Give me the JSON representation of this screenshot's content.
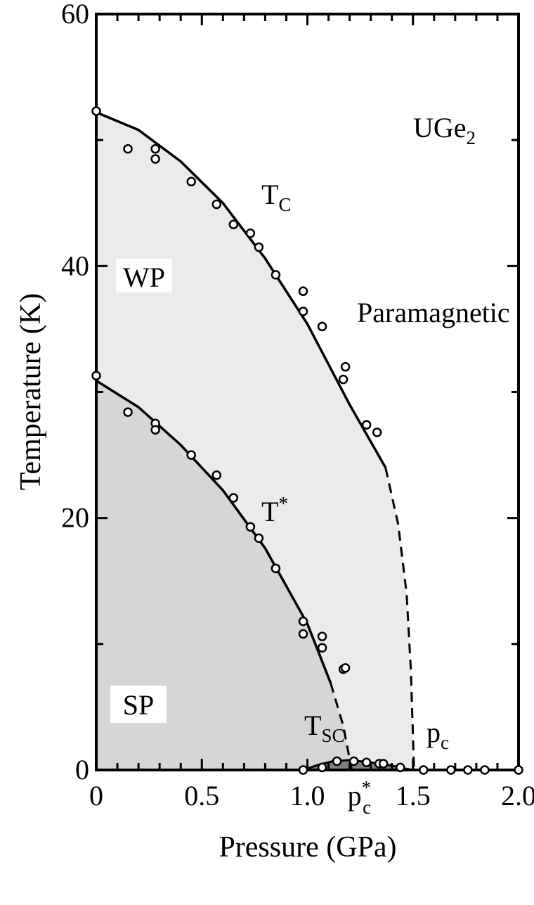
{
  "chart_data": {
    "type": "line",
    "xlabel": "Pressure (GPa)",
    "ylabel": "Temperature (K)",
    "xlim": [
      0,
      2.0
    ],
    "ylim": [
      0,
      60
    ],
    "x_ticks": [
      {
        "value": 0,
        "label": "0"
      },
      {
        "value": 0.5,
        "label": "0.5"
      },
      {
        "value": 1.0,
        "label": "1.0"
      },
      {
        "value": 1.5,
        "label": "1.5"
      },
      {
        "value": 2.0,
        "label": "2.0"
      }
    ],
    "y_ticks": [
      {
        "value": 0,
        "label": "0"
      },
      {
        "value": 20,
        "label": "20"
      },
      {
        "value": 40,
        "label": "40"
      },
      {
        "value": 60,
        "label": "60"
      }
    ],
    "pc_star_marker": {
      "value": 1.23,
      "base": "p",
      "sub": "c",
      "sup": "*"
    },
    "annotations": {
      "compound": {
        "base": "UGe",
        "sub": "2"
      },
      "tc_label": {
        "base": "T",
        "sub": "C"
      },
      "tstar_label": {
        "base": "T",
        "sup": "*"
      },
      "tsc_label": {
        "base": "T",
        "sub": "SC"
      },
      "pc_label": {
        "base": "p",
        "sub": "c"
      },
      "paramagnetic": "Paramagnetic",
      "wp": "WP",
      "sp": "SP"
    },
    "curves": {
      "Tc_solid": [
        [
          0,
          52.2
        ],
        [
          0.2,
          50.8
        ],
        [
          0.4,
          48.3
        ],
        [
          0.6,
          45.0
        ],
        [
          0.8,
          40.6
        ],
        [
          1.0,
          35.4
        ],
        [
          1.2,
          29.0
        ],
        [
          1.37,
          24.0
        ]
      ],
      "Tc_dashed": [
        [
          1.37,
          24.0
        ],
        [
          1.43,
          19.5
        ],
        [
          1.47,
          14.0
        ],
        [
          1.49,
          8.0
        ],
        [
          1.505,
          0
        ]
      ],
      "Tstar_solid": [
        [
          0,
          30.9
        ],
        [
          0.2,
          28.8
        ],
        [
          0.4,
          25.8
        ],
        [
          0.6,
          22.2
        ],
        [
          0.8,
          17.6
        ],
        [
          1.0,
          11.6
        ],
        [
          1.11,
          6.9
        ]
      ],
      "Tstar_dashed": [
        [
          1.11,
          6.9
        ],
        [
          1.17,
          3.5
        ],
        [
          1.21,
          0
        ]
      ],
      "Tsc_dome": [
        [
          0.98,
          0
        ],
        [
          1.05,
          0.4
        ],
        [
          1.12,
          0.7
        ],
        [
          1.2,
          0.78
        ],
        [
          1.3,
          0.6
        ],
        [
          1.4,
          0.35
        ],
        [
          1.45,
          0.15
        ],
        [
          1.5,
          0
        ]
      ]
    },
    "series": [
      {
        "values": [
          [
            0,
            52.3
          ],
          [
            0.15,
            49.3
          ],
          [
            0.28,
            49.3
          ],
          [
            0.28,
            48.5
          ],
          [
            0.45,
            46.7
          ],
          [
            0.57,
            44.9
          ],
          [
            0.65,
            43.3
          ],
          [
            0.73,
            42.6
          ],
          [
            0.77,
            41.5
          ],
          [
            0.85,
            39.3
          ],
          [
            0.98,
            38.0
          ],
          [
            0.98,
            36.4
          ],
          [
            1.07,
            35.2
          ],
          [
            1.17,
            31.0
          ],
          [
            1.18,
            32.0
          ],
          [
            1.28,
            27.4
          ],
          [
            1.33,
            26.8
          ]
        ]
      },
      {
        "values": [
          [
            0,
            31.3
          ],
          [
            0.15,
            28.4
          ],
          [
            0.28,
            27.5
          ],
          [
            0.28,
            27.0
          ],
          [
            0.45,
            25.0
          ],
          [
            0.57,
            23.4
          ],
          [
            0.65,
            21.6
          ],
          [
            0.73,
            19.3
          ],
          [
            0.77,
            18.4
          ],
          [
            0.85,
            16.0
          ],
          [
            0.98,
            11.8
          ],
          [
            0.98,
            10.8
          ],
          [
            1.07,
            10.6
          ],
          [
            1.07,
            9.7
          ],
          [
            1.17,
            8.0
          ],
          [
            1.18,
            8.1
          ]
        ]
      },
      {
        "values": [
          [
            0.98,
            0
          ],
          [
            1.07,
            0.2
          ],
          [
            1.14,
            0.7
          ],
          [
            1.22,
            0.7
          ],
          [
            1.28,
            0.6
          ],
          [
            1.34,
            0.5
          ],
          [
            1.36,
            0.5
          ],
          [
            1.44,
            0.2
          ],
          [
            1.55,
            0
          ],
          [
            1.68,
            0
          ],
          [
            1.76,
            0
          ],
          [
            1.84,
            0
          ],
          [
            2.0,
            0
          ]
        ]
      }
    ]
  }
}
